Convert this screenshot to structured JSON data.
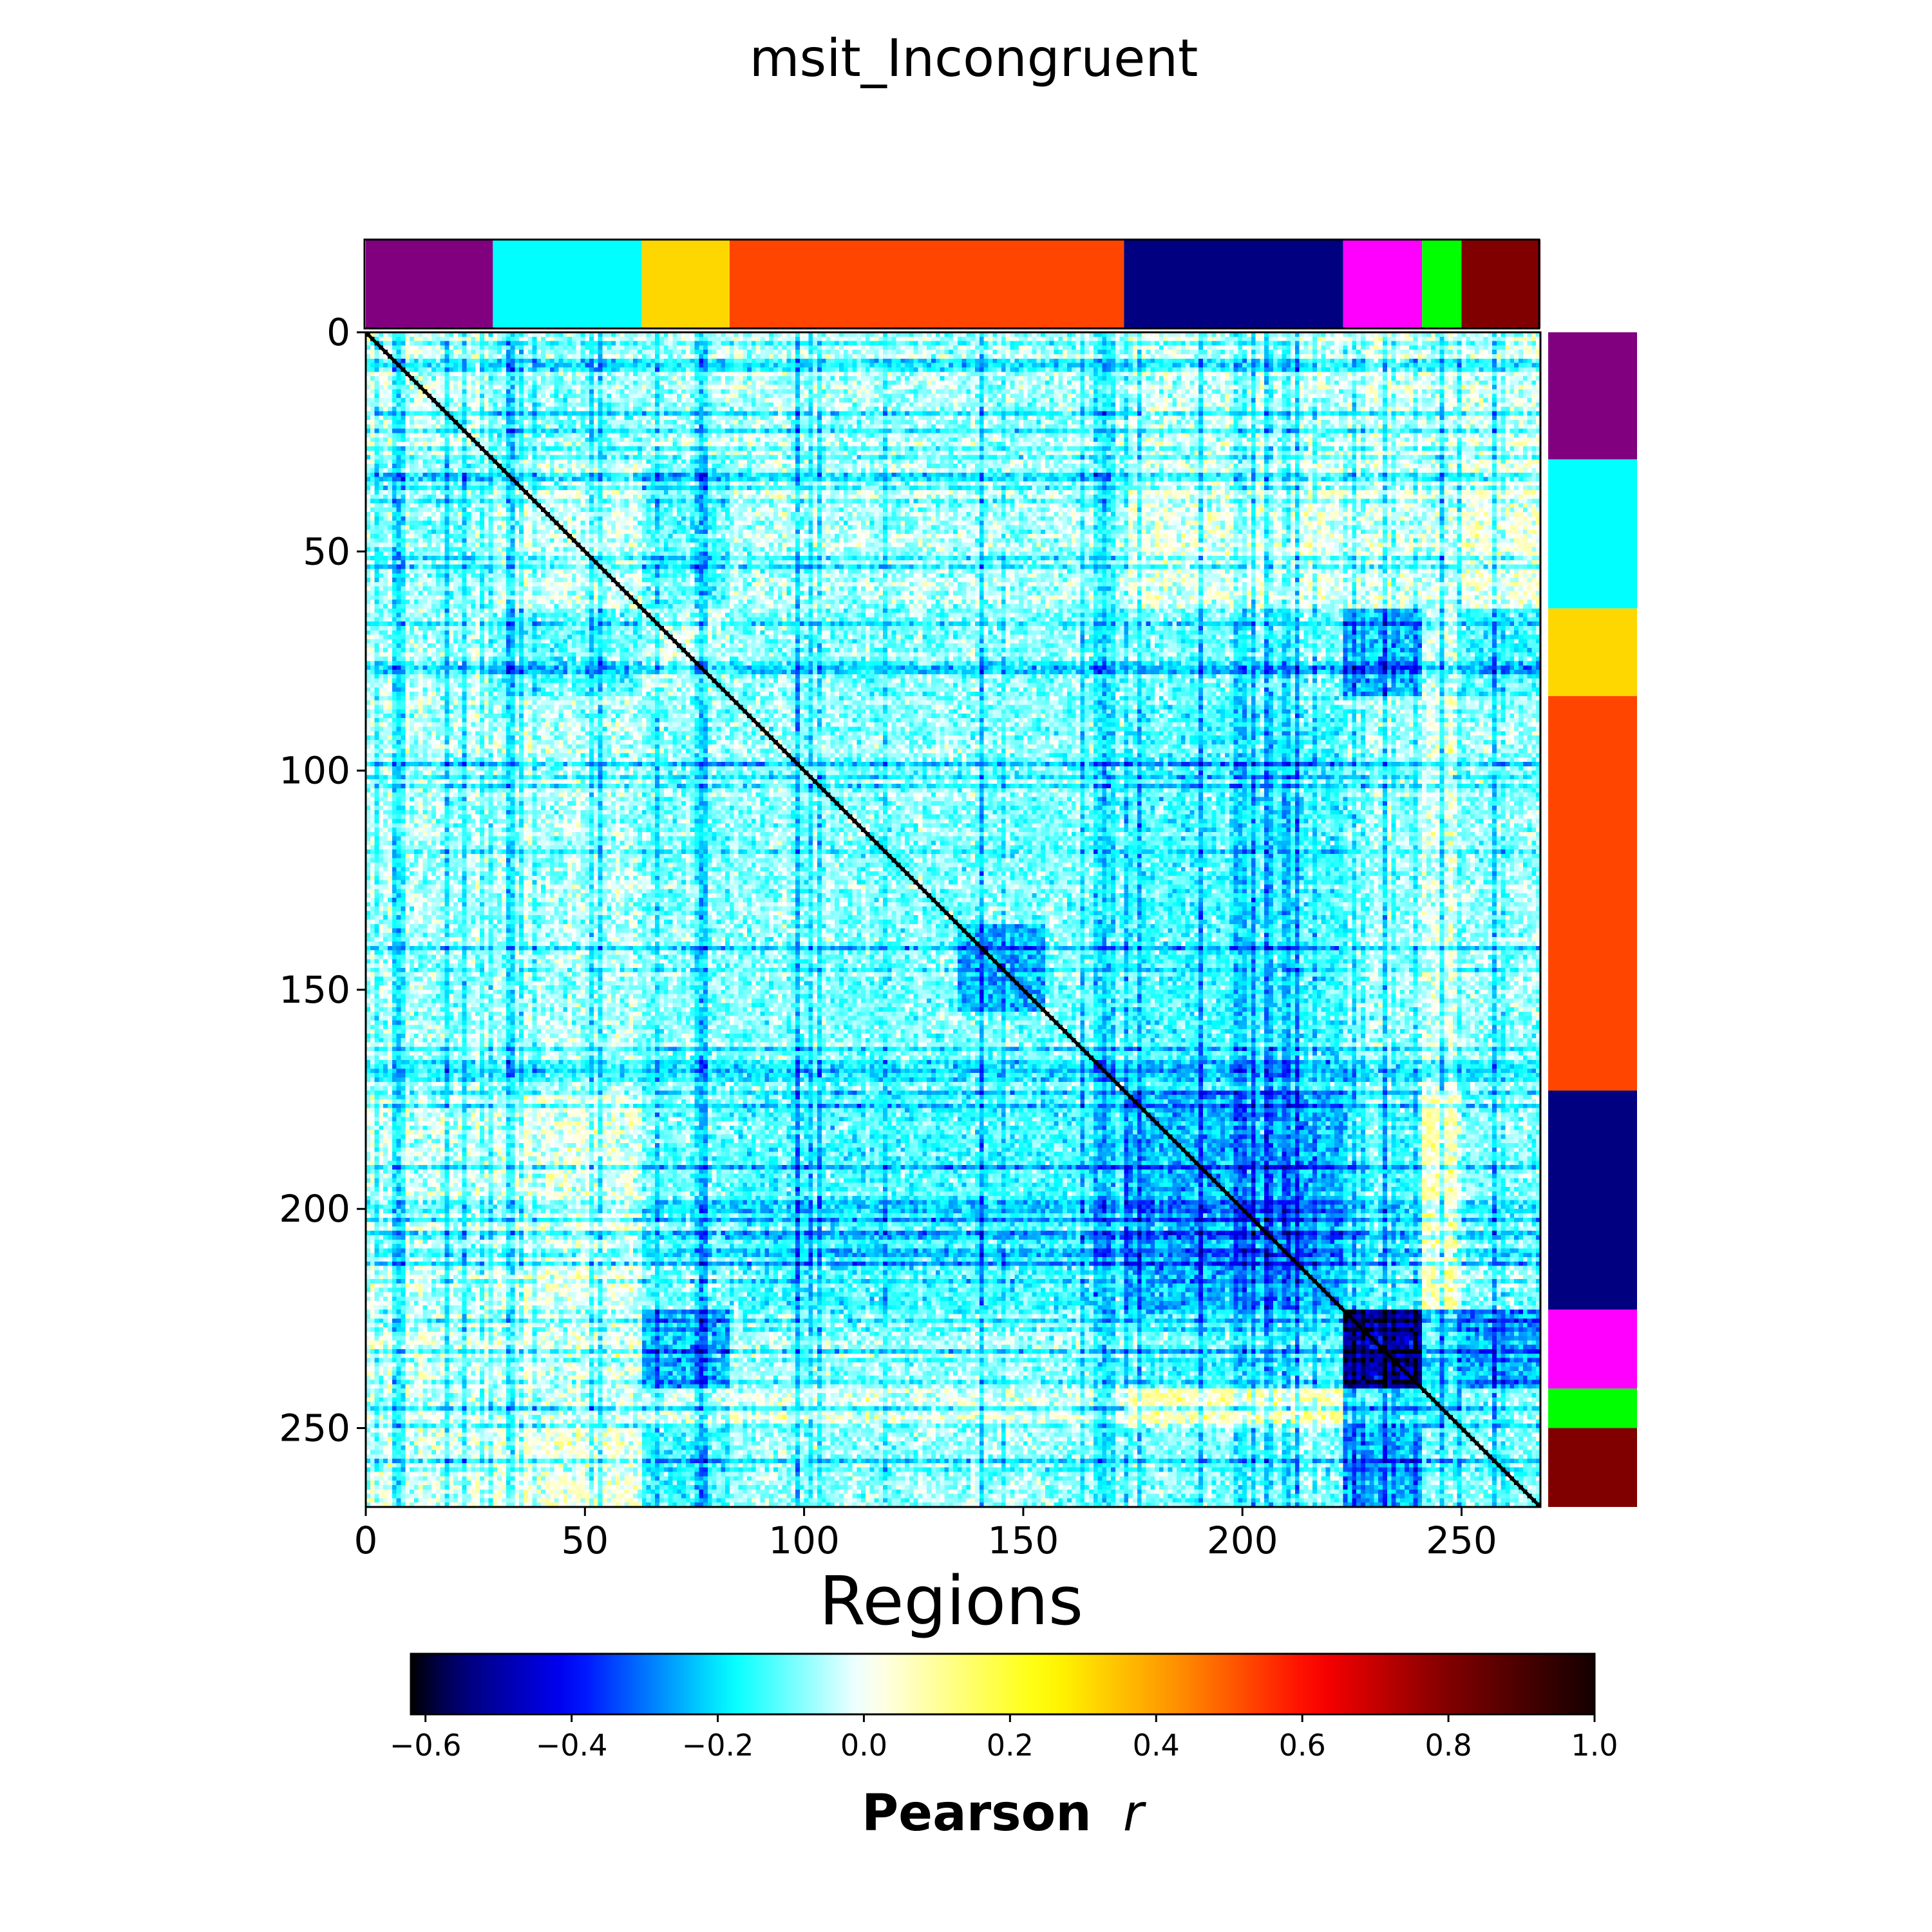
{
  "chart_data": {
    "type": "heatmap",
    "title": "msit_Incongruent",
    "xlabel": "Regions",
    "ylabel": "",
    "n_regions": 268,
    "xlim": [
      0,
      268
    ],
    "ylim": [
      268,
      0
    ],
    "x_ticks": [
      0,
      50,
      100,
      150,
      200,
      250
    ],
    "y_ticks": [
      0,
      50,
      100,
      150,
      200,
      250
    ],
    "x_tick_labels": [
      "0",
      "50",
      "100",
      "150",
      "200",
      "250"
    ],
    "y_tick_labels": [
      "0",
      "50",
      "100",
      "150",
      "200",
      "250"
    ],
    "colormap": "gist_ncar-like diverging (black-blue-cyan-white-yellow-orange-red-black)",
    "value_range": [
      -0.62,
      1.0
    ],
    "colorbar": {
      "label_main": "Pearson",
      "label_italic": "r",
      "ticks": [
        -0.6,
        -0.4,
        -0.2,
        0.0,
        0.2,
        0.4,
        0.6,
        0.8,
        1.0
      ],
      "tick_labels": [
        "−0.6",
        "−0.4",
        "−0.2",
        "0.0",
        "0.2",
        "0.4",
        "0.6",
        "0.8",
        "1.0"
      ],
      "orientation": "horizontal",
      "placement": "bottom"
    },
    "diagonal_value": 1.0,
    "network_blocks": [
      {
        "start": 0,
        "end": 29,
        "color": "#800080"
      },
      {
        "start": 29,
        "end": 63,
        "color": "#00FFFF"
      },
      {
        "start": 63,
        "end": 83,
        "color": "#FFD700"
      },
      {
        "start": 83,
        "end": 173,
        "color": "#FF4500"
      },
      {
        "start": 173,
        "end": 223,
        "color": "#000080"
      },
      {
        "start": 223,
        "end": 241,
        "color": "#FF00FF"
      },
      {
        "start": 241,
        "end": 250,
        "color": "#00FF00"
      },
      {
        "start": 250,
        "end": 268,
        "color": "#800000"
      }
    ],
    "notable_patterns": [
      {
        "rows": [
          223,
          241
        ],
        "cols": [
          223,
          241
        ],
        "approx_value": -0.5
      },
      {
        "rows": [
          173,
          223
        ],
        "cols": [
          173,
          223
        ],
        "approx_value": -0.25
      },
      {
        "rows": [
          135,
          155
        ],
        "cols": [
          135,
          155
        ],
        "approx_value": -0.3
      }
    ],
    "grid": false
  }
}
